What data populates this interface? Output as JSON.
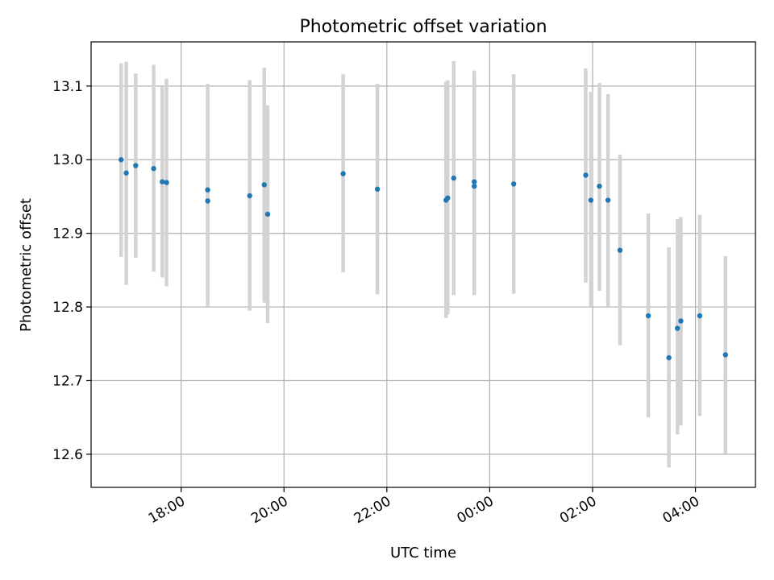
{
  "chart_data": {
    "type": "scatter",
    "title": "Photometric offset variation",
    "xlabel": "UTC time",
    "ylabel": "Photometric offset",
    "xlim": [
      "2023-01-01T16:15",
      "2023-01-02T05:10"
    ],
    "ylim": [
      12.555,
      13.16
    ],
    "x_ticks": [
      "18:00",
      "20:00",
      "22:00",
      "00:00",
      "02:00",
      "04:00"
    ],
    "x_tick_values": [
      "2023-01-01T18:00",
      "2023-01-01T20:00",
      "2023-01-01T22:00",
      "2023-01-02T00:00",
      "2023-01-02T02:00",
      "2023-01-02T04:00"
    ],
    "y_ticks": [
      12.6,
      12.7,
      12.8,
      12.9,
      13.0,
      13.1
    ],
    "y_tick_labels": [
      "12.6",
      "12.7",
      "12.8",
      "12.9",
      "13.0",
      "13.1"
    ],
    "grid": true,
    "points_color": "#1f77b4",
    "errorbar_color": "#d3d3d3",
    "points": [
      {
        "x": "2023-01-01T16:50",
        "y": 13.0,
        "lo": 12.868,
        "hi": 13.131
      },
      {
        "x": "2023-01-01T16:56",
        "y": 12.982,
        "lo": 12.83,
        "hi": 13.133
      },
      {
        "x": "2023-01-01T17:07",
        "y": 12.992,
        "lo": 12.867,
        "hi": 13.117
      },
      {
        "x": "2023-01-01T17:28",
        "y": 12.988,
        "lo": 12.848,
        "hi": 13.129
      },
      {
        "x": "2023-01-01T17:38",
        "y": 12.97,
        "lo": 12.84,
        "hi": 13.099
      },
      {
        "x": "2023-01-01T17:43",
        "y": 12.969,
        "lo": 12.828,
        "hi": 13.11
      },
      {
        "x": "2023-01-01T18:31",
        "y": 12.944,
        "lo": 12.8,
        "hi": 13.087
      },
      {
        "x": "2023-01-01T18:31",
        "y": 12.959,
        "lo": 12.815,
        "hi": 13.103
      },
      {
        "x": "2023-01-01T19:20",
        "y": 12.951,
        "lo": 12.795,
        "hi": 13.108
      },
      {
        "x": "2023-01-01T19:37",
        "y": 12.966,
        "lo": 12.806,
        "hi": 13.125
      },
      {
        "x": "2023-01-01T19:41",
        "y": 12.926,
        "lo": 12.778,
        "hi": 13.074
      },
      {
        "x": "2023-01-01T21:09",
        "y": 12.981,
        "lo": 12.847,
        "hi": 13.116
      },
      {
        "x": "2023-01-01T21:49",
        "y": 12.96,
        "lo": 12.817,
        "hi": 13.103
      },
      {
        "x": "2023-01-01T23:09",
        "y": 12.945,
        "lo": 12.785,
        "hi": 13.106
      },
      {
        "x": "2023-01-01T23:11",
        "y": 12.948,
        "lo": 12.79,
        "hi": 13.108
      },
      {
        "x": "2023-01-01T23:18",
        "y": 12.975,
        "lo": 12.816,
        "hi": 13.134
      },
      {
        "x": "2023-01-01T23:42",
        "y": 12.964,
        "lo": 12.816,
        "hi": 13.113
      },
      {
        "x": "2023-01-01T23:42",
        "y": 12.97,
        "lo": 12.82,
        "hi": 13.121
      },
      {
        "x": "2023-01-02T00:28",
        "y": 12.967,
        "lo": 12.818,
        "hi": 13.116
      },
      {
        "x": "2023-01-02T01:52",
        "y": 12.979,
        "lo": 12.833,
        "hi": 13.124
      },
      {
        "x": "2023-01-02T01:58",
        "y": 12.945,
        "lo": 12.8,
        "hi": 13.092
      },
      {
        "x": "2023-01-02T02:08",
        "y": 12.964,
        "lo": 12.822,
        "hi": 13.104
      },
      {
        "x": "2023-01-02T02:18",
        "y": 12.945,
        "lo": 12.8,
        "hi": 13.089
      },
      {
        "x": "2023-01-02T02:32",
        "y": 12.877,
        "lo": 12.748,
        "hi": 13.007
      },
      {
        "x": "2023-01-02T03:05",
        "y": 12.788,
        "lo": 12.65,
        "hi": 12.927
      },
      {
        "x": "2023-01-02T03:29",
        "y": 12.731,
        "lo": 12.582,
        "hi": 12.881
      },
      {
        "x": "2023-01-02T03:39",
        "y": 12.771,
        "lo": 12.627,
        "hi": 12.919
      },
      {
        "x": "2023-01-02T03:43",
        "y": 12.781,
        "lo": 12.639,
        "hi": 12.922
      },
      {
        "x": "2023-01-02T04:05",
        "y": 12.788,
        "lo": 12.652,
        "hi": 12.925
      },
      {
        "x": "2023-01-02T04:35",
        "y": 12.735,
        "lo": 12.601,
        "hi": 12.869
      }
    ]
  }
}
